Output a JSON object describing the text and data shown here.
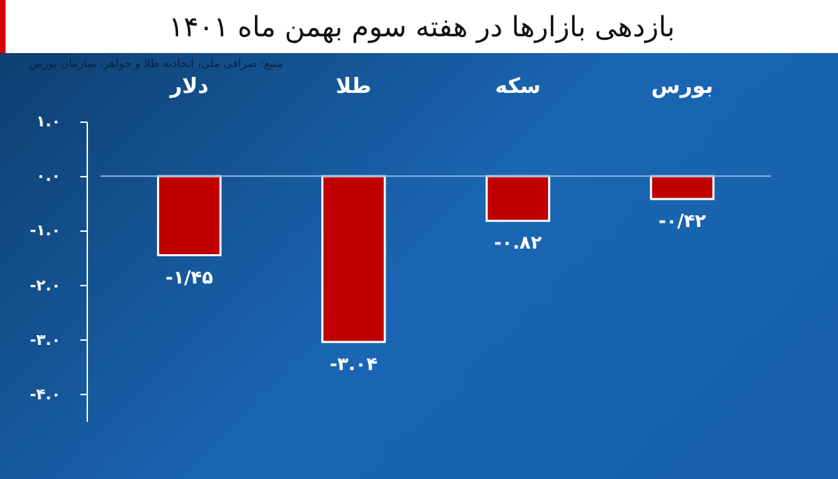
{
  "chart_data": {
    "type": "bar",
    "title": "بازدهی بازارها در هفته سوم بهمن ماه ۱۴۰۱",
    "annotations": [
      "منبع: صرافی ملی، اتحادیه طلا و جواهر، سازمان بورس"
    ],
    "categories": [
      "دلار",
      "طلا",
      "سکه",
      "بورس"
    ],
    "values": [
      -1.45,
      -3.04,
      -0.82,
      -0.42
    ],
    "value_labels": [
      "-۱/۴۵",
      "-۳.۰۴",
      "-۰.۸۲",
      "-۰/۴۲"
    ],
    "color": "#c00000",
    "ylim": [
      -4.5,
      1.0
    ],
    "yticks": [
      {
        "value": 1,
        "label": "۱.۰"
      },
      {
        "value": 0,
        "label": "۰.۰"
      },
      {
        "value": -1,
        "label": "-۱.۰"
      },
      {
        "value": -2,
        "label": "-۲.۰"
      },
      {
        "value": -3,
        "label": "-۳.۰"
      },
      {
        "value": -4,
        "label": "-۴.۰"
      }
    ],
    "ref_lines": [
      {
        "axis": "y",
        "value": 0,
        "color": "#8fb4e0"
      }
    ],
    "grid": false
  }
}
